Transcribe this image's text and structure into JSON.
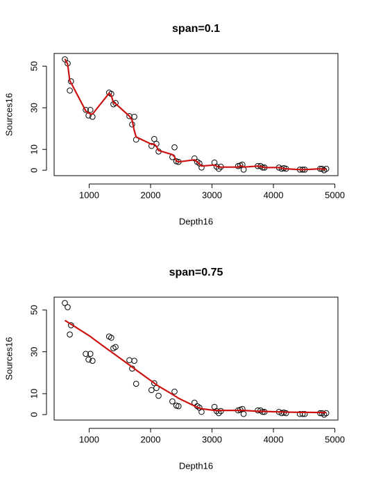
{
  "chart_data": [
    {
      "type": "scatter",
      "title": "span=0.1",
      "xlabel": "Depth16",
      "ylabel": "Sources16",
      "x": [
        605,
        650,
        685,
        705,
        945,
        990,
        1020,
        1055,
        1325,
        1360,
        1395,
        1430,
        1655,
        1700,
        1735,
        1765,
        2015,
        2060,
        2095,
        2130,
        2355,
        2390,
        2420,
        2455,
        2715,
        2760,
        2795,
        2830,
        3040,
        3075,
        3110,
        3145,
        3425,
        3460,
        3495,
        3515,
        3745,
        3790,
        3825,
        3855,
        4090,
        4135,
        4170,
        4205,
        4430,
        4475,
        4510,
        4760,
        4790,
        4825,
        4860
      ],
      "values": [
        53.3,
        51.3,
        38.3,
        42.7,
        29,
        26.3,
        29,
        25.7,
        37.3,
        36.7,
        31.7,
        32.3,
        26,
        22,
        25.7,
        14.7,
        11.7,
        15,
        12.7,
        9,
        6.3,
        11,
        4.3,
        4,
        5.7,
        4,
        3.3,
        1.3,
        3.7,
        1.7,
        0.7,
        1.7,
        2,
        2.3,
        2.7,
        0.3,
        2,
        2,
        1.3,
        1.3,
        1.3,
        0.7,
        1,
        0.7,
        0.3,
        0.3,
        0.3,
        0.7,
        0.7,
        0,
        0.7
      ],
      "color": "#000000",
      "fit": {
        "color": "#cc1111",
        "values": [
          53.5,
          51,
          43,
          42,
          28.5,
          27.5,
          27,
          27,
          37,
          36,
          32.5,
          32,
          26,
          24,
          19,
          16,
          12.5,
          12.5,
          11.5,
          9.5,
          7.5,
          6.5,
          4.5,
          4,
          5,
          4,
          3,
          2,
          2.5,
          2,
          1.5,
          1.5,
          1.5,
          2,
          2,
          1.5,
          2,
          1.8,
          1.5,
          1.3,
          1.3,
          1,
          0.8,
          0.7,
          0.3,
          0.3,
          0.3,
          0.7,
          0.6,
          0.5,
          0.5
        ]
      },
      "xlim": [
        430,
        5050
      ],
      "ylim": [
        -2.6,
        56.1
      ],
      "xticks": [
        1000,
        2000,
        3000,
        4000,
        5000
      ],
      "yticks": [
        0,
        10,
        30,
        50
      ]
    },
    {
      "type": "scatter",
      "title": "span=0.75",
      "xlabel": "Depth16",
      "ylabel": "Sources16",
      "x": [
        605,
        650,
        685,
        705,
        945,
        990,
        1020,
        1055,
        1325,
        1360,
        1395,
        1430,
        1655,
        1700,
        1735,
        1765,
        2015,
        2060,
        2095,
        2130,
        2355,
        2390,
        2420,
        2455,
        2715,
        2760,
        2795,
        2830,
        3040,
        3075,
        3110,
        3145,
        3425,
        3460,
        3495,
        3515,
        3745,
        3790,
        3825,
        3855,
        4090,
        4135,
        4170,
        4205,
        4430,
        4475,
        4510,
        4760,
        4790,
        4825,
        4860
      ],
      "values": [
        53.3,
        51.3,
        38.3,
        42.7,
        29,
        26.3,
        29,
        25.7,
        37.3,
        36.7,
        31.7,
        32.3,
        26,
        22,
        25.7,
        14.7,
        11.7,
        15,
        12.7,
        9,
        6.3,
        11,
        4.3,
        4,
        5.7,
        4,
        3.3,
        1.3,
        3.7,
        1.7,
        0.7,
        1.7,
        2,
        2.3,
        2.7,
        0.3,
        2,
        2,
        1.3,
        1.3,
        1.3,
        0.7,
        1,
        0.7,
        0.3,
        0.3,
        0.3,
        0.7,
        0.7,
        0,
        0.7
      ],
      "color": "#000000",
      "fit": {
        "color": "#cc1111",
        "values": [
          45,
          44.2,
          43.5,
          43.2,
          38.7,
          37.9,
          37.3,
          36.5,
          30.7,
          30,
          29.2,
          28.5,
          23.7,
          22.7,
          22,
          21.3,
          16,
          15,
          14.3,
          13.6,
          9.7,
          9,
          8.5,
          7.8,
          4.1,
          3.5,
          3.1,
          2.8,
          2,
          2,
          2,
          2,
          2,
          2,
          2,
          2,
          1.6,
          1.6,
          1.5,
          1.5,
          1.3,
          1.3,
          1.2,
          1.2,
          1.1,
          1.1,
          1.1,
          1,
          1,
          1,
          1
        ]
      },
      "xlim": [
        430,
        5050
      ],
      "ylim": [
        -2.6,
        56.1
      ],
      "xticks": [
        1000,
        2000,
        3000,
        4000,
        5000
      ],
      "yticks": [
        0,
        10,
        30,
        50
      ]
    }
  ]
}
